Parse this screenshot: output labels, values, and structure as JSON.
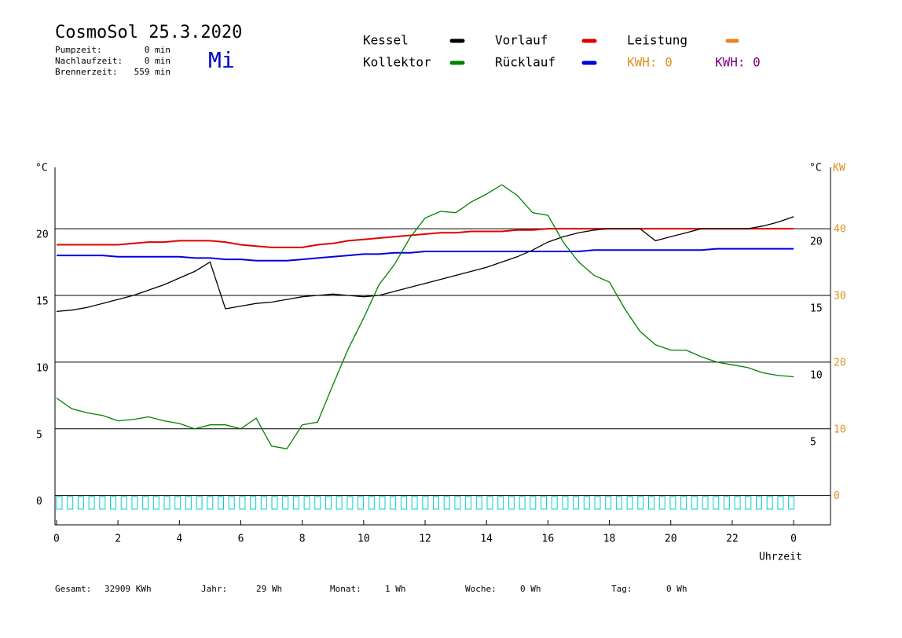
{
  "chart_data": {
    "type": "line",
    "title": "CosmoSol 25.3.2020",
    "weekday": "Mi",
    "info": [
      {
        "label": "Pumpzeit:",
        "value": "0 min"
      },
      {
        "label": "Nachlaufzeit:",
        "value": "0 min"
      },
      {
        "label": "Brennerzeit:",
        "value": "559 min"
      }
    ],
    "y_unit": "°C",
    "y2_unit": "KW",
    "xlabel": "Uhrzeit",
    "xlim": [
      -0.05,
      25.2
    ],
    "ylim": [
      -2.2,
      24.6
    ],
    "y2lim": [
      -4.4,
      49.2
    ],
    "xticks": [
      0,
      2,
      4,
      6,
      8,
      10,
      12,
      14,
      16,
      18,
      20,
      22,
      {
        "value": 24,
        "label": "0"
      }
    ],
    "yticks": [
      0,
      5,
      10,
      15,
      20
    ],
    "y2ticks": [
      0,
      10,
      20,
      30,
      40
    ],
    "grid": true,
    "x": [
      0,
      0.5,
      1,
      1.5,
      2,
      2.5,
      3,
      3.5,
      4,
      4.5,
      5,
      5.5,
      6,
      6.5,
      7,
      7.5,
      8,
      8.5,
      9,
      9.5,
      10,
      10.5,
      11,
      11.5,
      12,
      12.5,
      13,
      13.5,
      14,
      14.5,
      15,
      15.5,
      16,
      16.5,
      17,
      17.5,
      18,
      18.5,
      19,
      19.5,
      20,
      20.5,
      21,
      21.5,
      22,
      22.5,
      23,
      23.5,
      24
    ],
    "series": [
      {
        "name": "Kessel",
        "color": "#000000",
        "values": [
          13.8,
          13.9,
          14.1,
          14.4,
          14.7,
          15.0,
          15.4,
          15.8,
          16.3,
          16.8,
          17.5,
          14.0,
          14.2,
          14.4,
          14.5,
          14.7,
          14.9,
          15.0,
          15.1,
          15.0,
          14.9,
          15.0,
          15.3,
          15.6,
          15.9,
          16.2,
          16.5,
          16.8,
          17.1,
          17.5,
          17.9,
          18.4,
          19.0,
          19.4,
          19.7,
          19.9,
          20.0,
          20.0,
          20.0,
          19.1,
          19.4,
          19.7,
          20.0,
          20.0,
          20.0,
          20.0,
          20.2,
          20.5,
          20.9
        ]
      },
      {
        "name": "Kollektor",
        "color": "#008000",
        "values": [
          7.3,
          6.5,
          6.2,
          6.0,
          5.6,
          5.7,
          5.9,
          5.6,
          5.4,
          5.0,
          5.3,
          5.3,
          5.0,
          5.8,
          3.7,
          3.5,
          5.3,
          5.5,
          8.3,
          11.0,
          13.3,
          15.8,
          17.3,
          19.3,
          20.8,
          21.3,
          21.2,
          22.0,
          22.6,
          23.3,
          22.5,
          21.2,
          21.0,
          19.0,
          17.5,
          16.5,
          16.0,
          14.0,
          12.3,
          11.3,
          10.9,
          10.9,
          10.4,
          10.0,
          9.8,
          9.6,
          9.2,
          9.0,
          8.9
        ]
      },
      {
        "name": "Vorlauf",
        "color": "#e00000",
        "values": [
          18.8,
          18.8,
          18.8,
          18.8,
          18.8,
          18.9,
          19.0,
          19.0,
          19.1,
          19.1,
          19.1,
          19.0,
          18.8,
          18.7,
          18.6,
          18.6,
          18.6,
          18.8,
          18.9,
          19.1,
          19.2,
          19.3,
          19.4,
          19.5,
          19.6,
          19.7,
          19.7,
          19.8,
          19.8,
          19.8,
          19.9,
          19.9,
          20.0,
          20.0,
          20.0,
          20.0,
          20.0,
          20.0,
          20.0,
          20.0,
          20.0,
          20.0,
          20.0,
          20.0,
          20.0,
          20.0,
          20.0,
          20.0,
          20.0
        ]
      },
      {
        "name": "Rücklauf",
        "color": "#0000e0",
        "values": [
          18.0,
          18.0,
          18.0,
          18.0,
          17.9,
          17.9,
          17.9,
          17.9,
          17.9,
          17.8,
          17.8,
          17.7,
          17.7,
          17.6,
          17.6,
          17.6,
          17.7,
          17.8,
          17.9,
          18.0,
          18.1,
          18.1,
          18.2,
          18.2,
          18.3,
          18.3,
          18.3,
          18.3,
          18.3,
          18.3,
          18.3,
          18.3,
          18.3,
          18.3,
          18.3,
          18.4,
          18.4,
          18.4,
          18.4,
          18.4,
          18.4,
          18.4,
          18.4,
          18.5,
          18.5,
          18.5,
          18.5,
          18.5,
          18.5
        ]
      }
    ],
    "legend_extra": {
      "name": "Leistung",
      "color": "#f08020"
    },
    "kwh_labels": [
      {
        "text": "KWH: 0",
        "color": "#e09020"
      },
      {
        "text": "KWH: 0",
        "color": "#800080"
      }
    ],
    "footer": [
      {
        "label": "Gesamt:",
        "value": "32909 KWh"
      },
      {
        "label": "Jahr:",
        "value": "29 Wh"
      },
      {
        "label": "Monat:",
        "value": "1 Wh"
      },
      {
        "label": "Woche:",
        "value": "0 Wh"
      },
      {
        "label": "Tag:",
        "value": "0 Wh"
      }
    ]
  }
}
